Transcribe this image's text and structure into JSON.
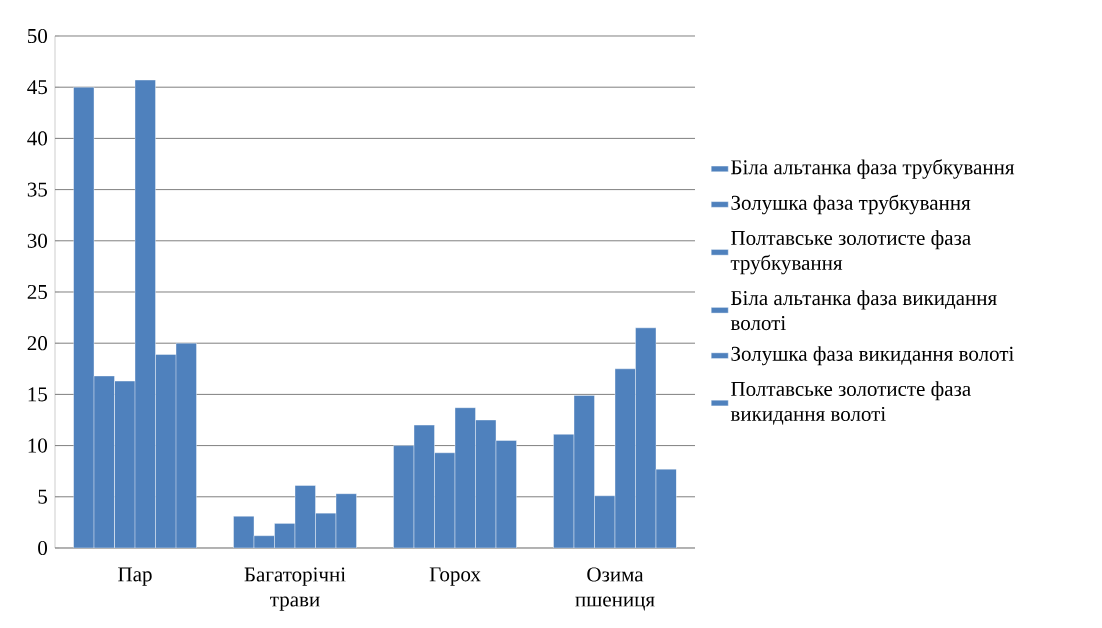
{
  "chart_data": {
    "type": "bar",
    "categories": [
      "Пар",
      "Багаторічні трави",
      "Горох",
      "Озима пшениця"
    ],
    "series": [
      {
        "name": "Біла альтанка фаза трубкування",
        "color": "#4f81bd",
        "values": [
          45.0,
          3.1,
          10.0,
          11.1
        ]
      },
      {
        "name": "Золушка фаза трубкування",
        "color": "#4f81bd",
        "values": [
          16.8,
          1.2,
          12.0,
          14.9
        ]
      },
      {
        "name": "Полтавське золотисте фаза трубкування",
        "color": "#4f81bd",
        "values": [
          16.3,
          2.4,
          9.3,
          5.1
        ]
      },
      {
        "name": "Біла альтанка фаза викидання волоті",
        "color": "#4f81bd",
        "values": [
          45.7,
          6.1,
          13.7,
          17.5
        ]
      },
      {
        "name": "Золушка фаза викидання волоті",
        "color": "#4f81bd",
        "values": [
          18.9,
          3.4,
          12.5,
          21.5
        ]
      },
      {
        "name": "Полтавське золотисте фаза викидання волоті",
        "color": "#4f81bd",
        "values": [
          20.0,
          5.3,
          10.5,
          7.7
        ]
      }
    ],
    "ylim": [
      0,
      50
    ],
    "yticks": [
      0,
      5,
      10,
      15,
      20,
      25,
      30,
      35,
      40,
      45,
      50
    ],
    "grid": "y",
    "legend": "right"
  }
}
